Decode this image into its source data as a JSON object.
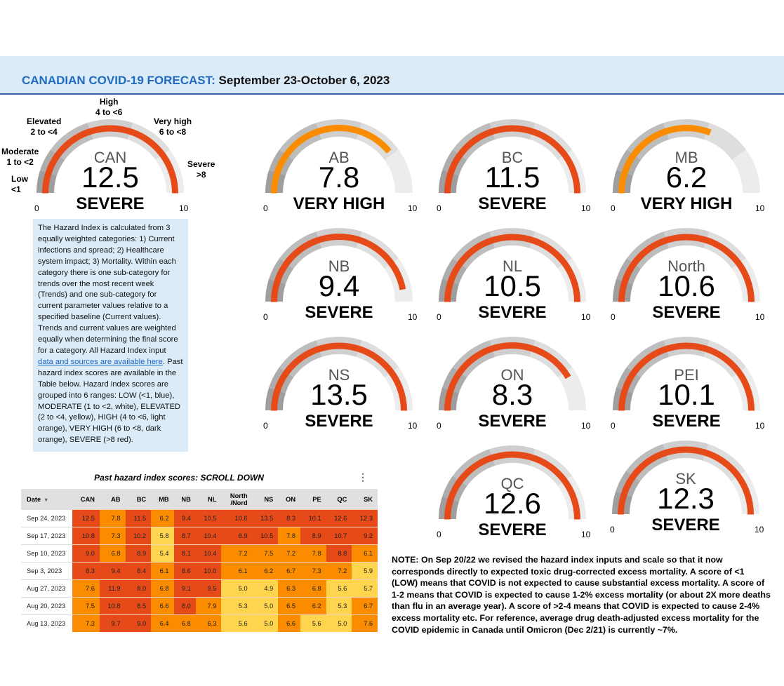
{
  "header": {
    "brand": "CANADIAN COVID-19 FORECAST:",
    "dates": "September 23-October 6, 2023"
  },
  "scale": {
    "min_label": "0",
    "max_label": "10",
    "min": 0,
    "max": 10,
    "bands": [
      {
        "from": 0,
        "to": 1,
        "color": "#9e9e9e"
      },
      {
        "from": 1,
        "to": 2,
        "color": "#adadad"
      },
      {
        "from": 2,
        "to": 4,
        "color": "#bdbdbd"
      },
      {
        "from": 4,
        "to": 6,
        "color": "#cfcfcf"
      },
      {
        "from": 6,
        "to": 8,
        "color": "#dedede"
      },
      {
        "from": 8,
        "to": 10,
        "color": "#ececec"
      }
    ],
    "level_colors": {
      "SEVERE": "#e64a19",
      "VERY HIGH": "#fb8c00"
    }
  },
  "can_gauge": {
    "name": "CAN",
    "value": 12.5,
    "value_label": "12.5",
    "level": "SEVERE",
    "range_labels": [
      {
        "name": "Low",
        "range": "<1"
      },
      {
        "name": "Moderate",
        "range": "1 to <2"
      },
      {
        "name": "Elevated",
        "range": "2 to <4"
      },
      {
        "name": "High",
        "range": "4 to <6"
      },
      {
        "name": "Very high",
        "range": "6 to <8"
      },
      {
        "name": "Severe",
        "range": ">8"
      }
    ]
  },
  "gauges": [
    {
      "name": "AB",
      "value": 7.8,
      "value_label": "7.8",
      "level": "VERY HIGH"
    },
    {
      "name": "BC",
      "value": 11.5,
      "value_label": "11.5",
      "level": "SEVERE"
    },
    {
      "name": "MB",
      "value": 6.2,
      "value_label": "6.2",
      "level": "VERY HIGH"
    },
    {
      "name": "NB",
      "value": 9.4,
      "value_label": "9.4",
      "level": "SEVERE"
    },
    {
      "name": "NL",
      "value": 10.5,
      "value_label": "10.5",
      "level": "SEVERE"
    },
    {
      "name": "North",
      "value": 10.6,
      "value_label": "10.6",
      "level": "SEVERE"
    },
    {
      "name": "NS",
      "value": 13.5,
      "value_label": "13.5",
      "level": "SEVERE"
    },
    {
      "name": "ON",
      "value": 8.3,
      "value_label": "8.3",
      "level": "SEVERE"
    },
    {
      "name": "PEI",
      "value": 10.1,
      "value_label": "10.1",
      "level": "SEVERE"
    },
    {
      "name": "QC",
      "value": 12.6,
      "value_label": "12.6",
      "level": "SEVERE"
    },
    {
      "name": "SK",
      "value": 12.3,
      "value_label": "12.3",
      "level": "SEVERE"
    }
  ],
  "info": {
    "text_before_link": "The Hazard Index is calculated from 3 equally weighted categories: 1) Current infections and spread; 2) Healthcare system impact; 3) Mortality. Within each category there is one sub-category for trends over the most recent week (Trends) and one sub-category for current parameter values relative to a specified baseline (Current values). Trends and current values are weighted equally when determining the final score for a category. All Hazard Index input ",
    "link_text": "data and sources are available here",
    "text_after_link": ". Past hazard index scores are available in the Table below. Hazard index scores are grouped into 6 ranges: LOW (<1, blue), MODERATE (1 to <2, white), ELEVATED (2 to <4, yellow), HIGH (4 to <6, light orange), VERY HIGH (6 to <8, dark orange), SEVERE (>8 red)."
  },
  "table": {
    "title": "Past hazard index scores: SCROLL DOWN",
    "menu_icon": "more-vert-icon",
    "sort_icon": "▾",
    "columns": [
      "Date",
      "CAN",
      "AB",
      "BC",
      "MB",
      "NB",
      "NL",
      "North\n/Nord",
      "NS",
      "ON",
      "PE",
      "QC",
      "SK"
    ],
    "column_north_line1": "North",
    "column_north_line2": "/Nord",
    "cell_colors": {
      "red": "#e64a19",
      "dark_orange": "#fb8c00",
      "yellow": "#ffd54f"
    },
    "rows": [
      {
        "date": "Sep 24, 2023",
        "values": [
          "12.5",
          "7.8",
          "11.5",
          "6.2",
          "9.4",
          "10.5",
          "10.6",
          "13.5",
          "8.3",
          "10.1",
          "12.6",
          "12.3"
        ]
      },
      {
        "date": "Sep 17, 2023",
        "values": [
          "10.8",
          "7.3",
          "10.2",
          "5.8",
          "8.7",
          "10.4",
          "8.9",
          "10.5",
          "7.8",
          "8.9",
          "10.7",
          "9.2"
        ]
      },
      {
        "date": "Sep 10, 2023",
        "values": [
          "9.0",
          "6.8",
          "8.9",
          "5.4",
          "8.1",
          "10.4",
          "7.2",
          "7.5",
          "7.2",
          "7.8",
          "8.8",
          "6.1"
        ]
      },
      {
        "date": "Sep 3, 2023",
        "values": [
          "8.3",
          "9.4",
          "8.4",
          "6.1",
          "8.6",
          "10.0",
          "6.1",
          "6.2",
          "6.7",
          "7.3",
          "7.2",
          "5.9"
        ]
      },
      {
        "date": "Aug 27, 2023",
        "values": [
          "7.6",
          "11.9",
          "8.0",
          "6.8",
          "9.1",
          "9.5",
          "5.0",
          "4.9",
          "6.3",
          "6.8",
          "5.6",
          "5.7"
        ]
      },
      {
        "date": "Aug 20, 2023",
        "values": [
          "7.5",
          "10.8",
          "8.5",
          "6.6",
          "8.0",
          "7.9",
          "5.3",
          "5.0",
          "6.5",
          "6.2",
          "5.3",
          "6.7"
        ]
      },
      {
        "date": "Aug 13, 2023",
        "values": [
          "7.3",
          "9.7",
          "9.0",
          "6.4",
          "6.8",
          "6.3",
          "5.6",
          "5.0",
          "6.6",
          "5.6",
          "5.0",
          "7.6"
        ]
      }
    ]
  },
  "note": "NOTE: On Sep 20/22 we revised the hazard index inputs and scale so that it now corresponds directly to expected toxic drug-corrected excess mortality. A score of <1 (LOW) means that COVID is not expected to cause substantial excess mortality. A score of 1-2 means that COVID is expected to cause 1-2% excess mortality (or about 2X more deaths than flu in an average year). A score of >2-4 means that COVID is expected to cause 2-4% excess mortality etc. For reference, average drug death-adjusted excess mortality for the COVID epidemic in Canada until Omicron (Dec 2/21) is currently ~7%."
}
